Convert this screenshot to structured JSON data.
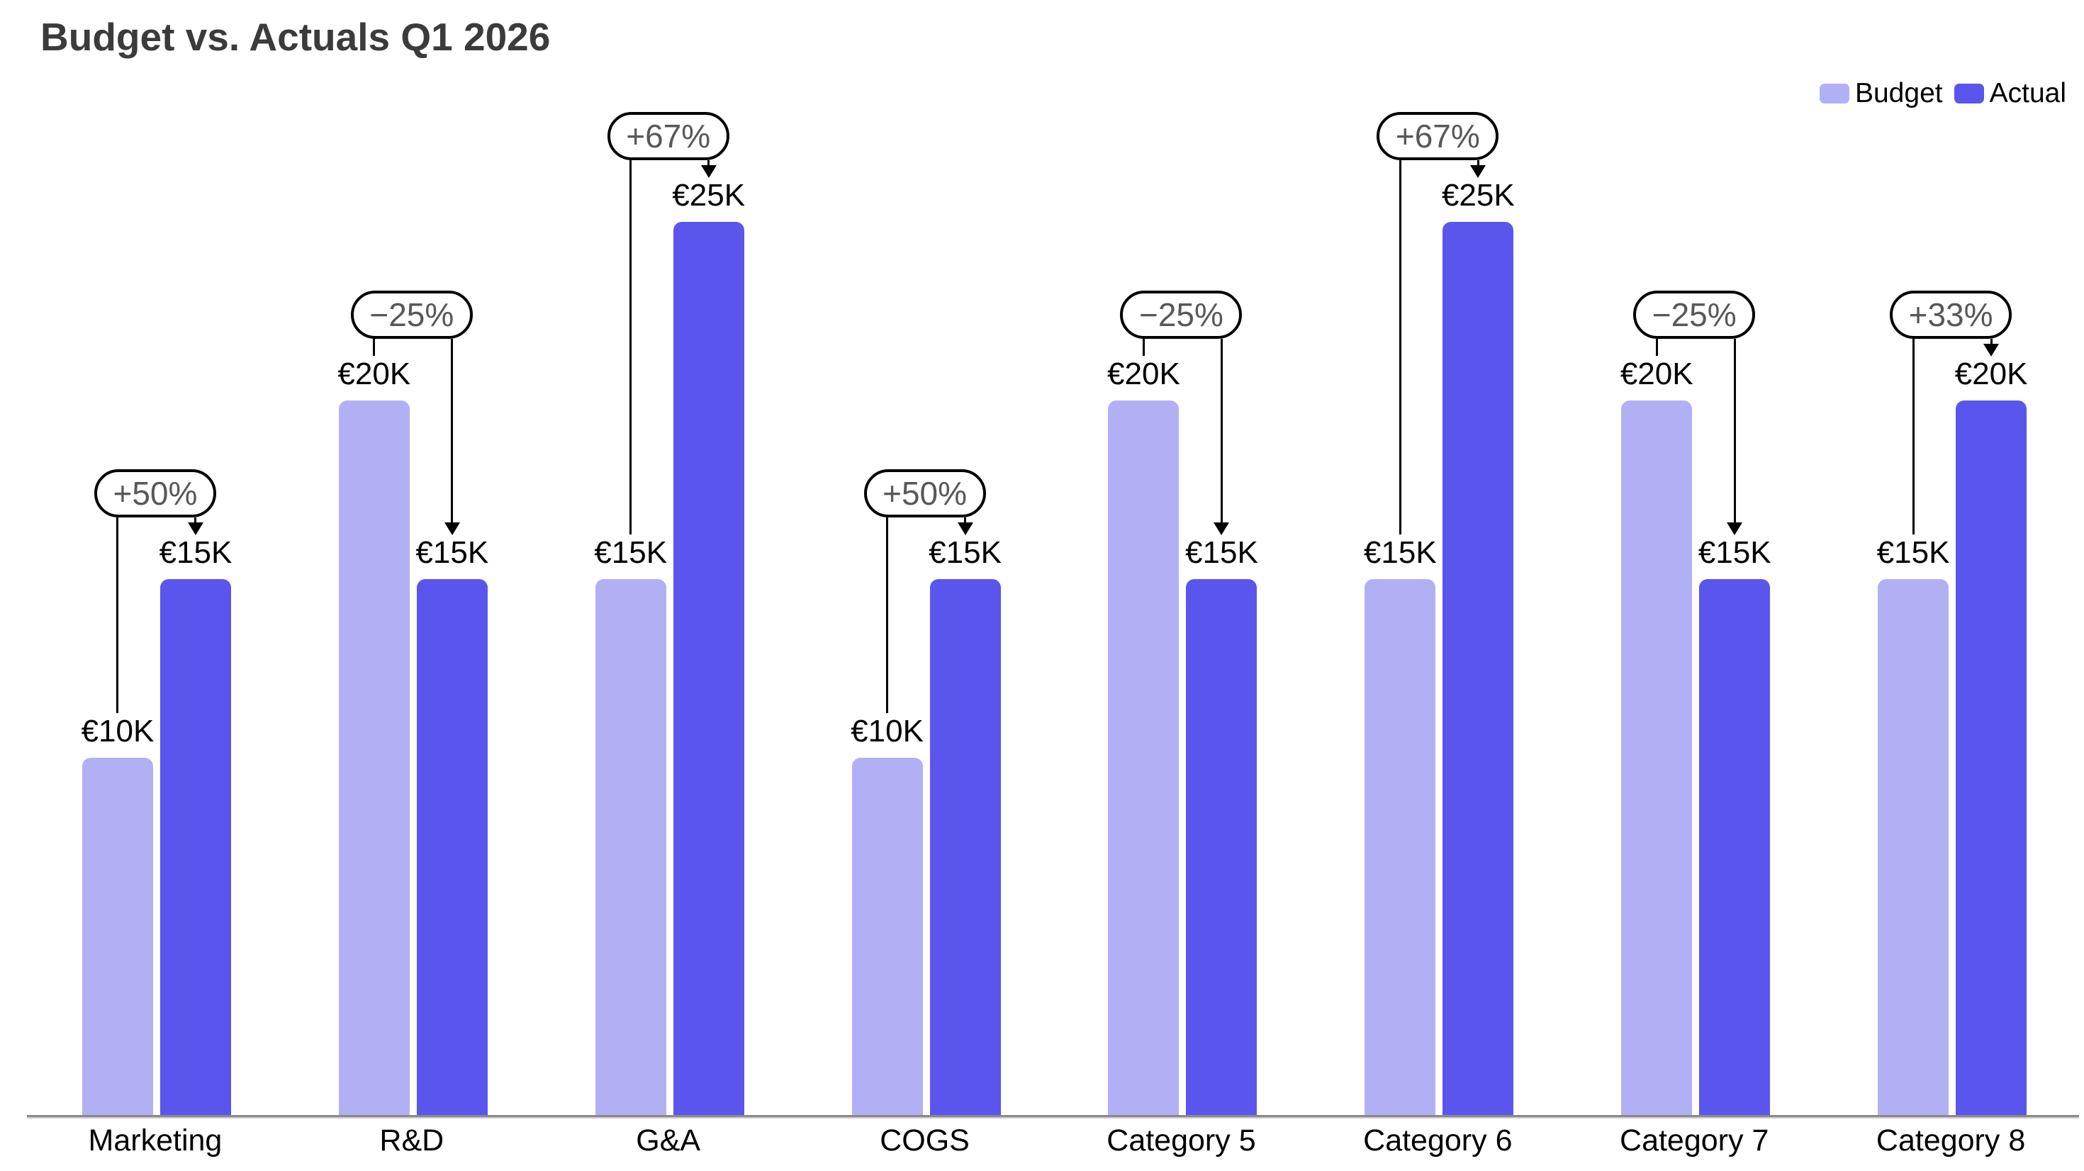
{
  "chart_data": {
    "type": "bar",
    "title": "Budget vs. Actuals Q1 2026",
    "currency": "EUR",
    "unit": "thousands",
    "categories": [
      "Marketing",
      "R&D",
      "G&A",
      "COGS",
      "Category 5",
      "Category 6",
      "Category 7",
      "Category 8"
    ],
    "series": [
      {
        "name": "Budget",
        "color": "#b2b0f4",
        "values": [
          10,
          20,
          15,
          10,
          20,
          15,
          20,
          15
        ]
      },
      {
        "name": "Actual",
        "color": "#5a56ed",
        "values": [
          15,
          15,
          25,
          15,
          15,
          25,
          15,
          20
        ]
      }
    ],
    "groups": [
      {
        "category": "Marketing",
        "budget": 10,
        "actual": 15,
        "budget_label": "€10K",
        "actual_label": "€15K",
        "change_label": "+50%"
      },
      {
        "category": "R&D",
        "budget": 20,
        "actual": 15,
        "budget_label": "€20K",
        "actual_label": "€15K",
        "change_label": "−25%"
      },
      {
        "category": "G&A",
        "budget": 15,
        "actual": 25,
        "budget_label": "€15K",
        "actual_label": "€25K",
        "change_label": "+67%"
      },
      {
        "category": "COGS",
        "budget": 10,
        "actual": 15,
        "budget_label": "€10K",
        "actual_label": "€15K",
        "change_label": "+50%"
      },
      {
        "category": "Category 5",
        "budget": 20,
        "actual": 15,
        "budget_label": "€20K",
        "actual_label": "€15K",
        "change_label": "−25%"
      },
      {
        "category": "Category 6",
        "budget": 15,
        "actual": 25,
        "budget_label": "€15K",
        "actual_label": "€25K",
        "change_label": "+67%"
      },
      {
        "category": "Category 7",
        "budget": 20,
        "actual": 15,
        "budget_label": "€20K",
        "actual_label": "€15K",
        "change_label": "−25%"
      },
      {
        "category": "Category 8",
        "budget": 15,
        "actual": 20,
        "budget_label": "€15K",
        "actual_label": "€20K",
        "change_label": "+33%"
      }
    ],
    "ylim": [
      0,
      25
    ],
    "grid": false,
    "y_axis_visible": false,
    "legend_position": "top-right",
    "axis_line_color": "#8a8a8a",
    "annotation_text_color": "#58585a",
    "annotation_border_color": "#000000"
  }
}
